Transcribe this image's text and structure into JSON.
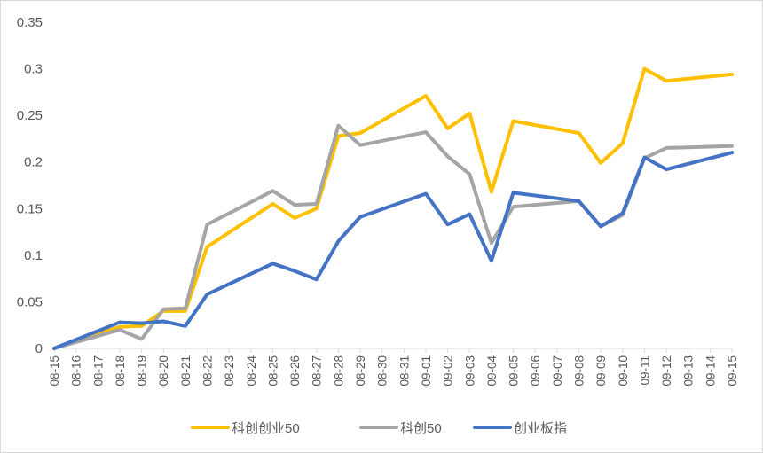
{
  "chart_data": {
    "type": "line",
    "title": "",
    "xlabel": "",
    "ylabel": "",
    "categories": [
      "08-15",
      "08-16",
      "08-17",
      "08-18",
      "08-19",
      "08-20",
      "08-21",
      "08-22",
      "08-23",
      "08-24",
      "08-25",
      "08-26",
      "08-27",
      "08-28",
      "08-29",
      "08-30",
      "08-31",
      "09-01",
      "09-02",
      "09-03",
      "09-04",
      "09-05",
      "09-06",
      "09-07",
      "09-08",
      "09-09",
      "09-10",
      "09-11",
      "09-12",
      "09-13",
      "09-14",
      "09-15"
    ],
    "ylim": [
      0,
      0.35
    ],
    "yticks": [
      "0",
      "0.05",
      "0.1",
      "0.15",
      "0.2",
      "0.25",
      "0.3",
      "0.35"
    ],
    "grid": false,
    "legend_position": "bottom",
    "series": [
      {
        "name": "科创创业50",
        "color": "#FFC000",
        "values": [
          0.0,
          null,
          null,
          0.023,
          0.024,
          0.04,
          0.04,
          0.109,
          null,
          null,
          0.155,
          0.14,
          0.15,
          0.228,
          0.231,
          null,
          null,
          0.271,
          0.236,
          0.252,
          0.168,
          0.244,
          null,
          null,
          0.231,
          0.199,
          0.22,
          0.3,
          0.287,
          null,
          null,
          0.294
        ]
      },
      {
        "name": "科创50",
        "color": "#A5A5A5",
        "values": [
          0.0,
          null,
          null,
          0.02,
          0.01,
          0.042,
          0.043,
          0.133,
          null,
          null,
          0.169,
          0.154,
          0.155,
          0.239,
          0.218,
          null,
          null,
          0.232,
          0.206,
          0.187,
          0.113,
          0.152,
          null,
          null,
          0.158,
          0.131,
          0.143,
          0.204,
          0.215,
          null,
          null,
          0.217
        ]
      },
      {
        "name": "创业板指",
        "color": "#4472C4",
        "values": [
          0.0,
          null,
          null,
          0.028,
          0.027,
          0.029,
          0.024,
          0.058,
          null,
          null,
          0.091,
          0.083,
          0.074,
          0.115,
          0.141,
          null,
          null,
          0.166,
          0.133,
          0.144,
          0.094,
          0.167,
          null,
          null,
          0.158,
          0.131,
          0.145,
          0.205,
          0.192,
          null,
          null,
          0.21
        ]
      }
    ]
  }
}
